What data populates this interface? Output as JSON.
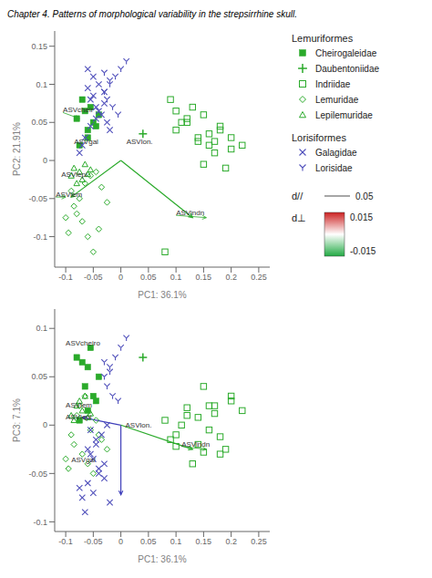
{
  "chart_data": [
    {
      "type": "scatter",
      "title": "Chapter 4. Patterns of morphological variability in the strepsirrhine skull.",
      "x_label": "PC1: 36.1%",
      "y_label": "PC2: 21.91%",
      "xlim": [
        -0.12,
        0.27
      ],
      "ylim": [
        -0.14,
        0.17
      ],
      "xticks": [
        -0.1,
        -0.05,
        0,
        0.05,
        0.1,
        0.15,
        0.2,
        0.25
      ],
      "yticks": [
        -0.1,
        -0.05,
        0,
        0.05,
        0.1,
        0.15
      ],
      "grid": false,
      "series": [
        {
          "name": "Cheirogaleidae",
          "color": "#2aaa2a",
          "marker": "square",
          "x": [
            -0.08,
            -0.06,
            -0.055,
            -0.04,
            -0.07,
            -0.065,
            -0.05,
            -0.045,
            -0.06,
            -0.075
          ],
          "values": [
            0.055,
            0.04,
            0.07,
            0.06,
            0.08,
            0.065,
            0.05,
            0.045,
            0.03,
            0.02
          ]
        },
        {
          "name": "Lemuridae",
          "color": "#2aaa2a",
          "marker": "diamond_open",
          "x": [
            -0.09,
            -0.085,
            -0.07,
            -0.06,
            -0.05,
            -0.04,
            -0.08,
            -0.075,
            -0.065,
            -0.055,
            -0.045,
            -0.035,
            -0.025,
            -0.1,
            -0.095
          ],
          "values": [
            -0.04,
            -0.06,
            -0.08,
            -0.1,
            -0.12,
            -0.09,
            -0.07,
            -0.05,
            -0.03,
            -0.02,
            -0.015,
            -0.035,
            -0.055,
            -0.075,
            -0.095
          ]
        },
        {
          "name": "Lepilemuridae",
          "color": "#2aaa2a",
          "marker": "triangle_open",
          "x": [
            -0.09,
            -0.08,
            -0.07,
            -0.085,
            -0.075,
            -0.065,
            -0.055,
            -0.06
          ],
          "values": [
            -0.02,
            -0.03,
            -0.025,
            -0.01,
            -0.015,
            -0.005,
            -0.012,
            -0.018
          ]
        },
        {
          "name": "Indriidae",
          "color": "#2aaa2a",
          "marker": "square_open",
          "x": [
            0.1,
            0.12,
            0.14,
            0.16,
            0.18,
            0.2,
            0.15,
            0.13,
            0.11,
            0.17,
            0.19,
            0.22,
            0.09,
            0.08,
            0.16,
            0.14,
            0.18,
            0.12,
            0.1,
            0.2,
            0.15,
            0.17
          ],
          "values": [
            0.04,
            0.05,
            0.03,
            0.02,
            0.04,
            0.03,
            0.06,
            0.07,
            0.05,
            0.01,
            -0.01,
            0.02,
            0.08,
            -0.12,
            0.035,
            0.025,
            0.045,
            0.055,
            0.065,
            0.015,
            -0.005,
            0.025
          ]
        },
        {
          "name": "Daubentoniidae",
          "color": "#2aaa2a",
          "marker": "plus",
          "x": [
            0.04
          ],
          "values": [
            0.035
          ]
        },
        {
          "name": "Galagidae",
          "color": "#5050bb",
          "marker": "x",
          "x": [
            -0.06,
            -0.05,
            -0.04,
            -0.03,
            -0.055,
            -0.045,
            -0.035,
            -0.025,
            -0.02,
            -0.065,
            -0.07,
            -0.075,
            -0.03,
            -0.04,
            -0.05,
            -0.06,
            -0.045,
            -0.055
          ],
          "values": [
            0.12,
            0.11,
            0.1,
            0.09,
            0.08,
            0.07,
            0.06,
            0.05,
            0.04,
            0.03,
            0.02,
            0.01,
            0.075,
            0.065,
            0.085,
            0.095,
            0.055,
            0.045
          ]
        },
        {
          "name": "Lorisidae",
          "color": "#5050bb",
          "marker": "Y",
          "x": [
            -0.03,
            -0.02,
            -0.01,
            0.0,
            0.01,
            -0.025,
            -0.015,
            -0.005,
            -0.02,
            -0.03
          ],
          "values": [
            0.09,
            0.1,
            0.11,
            0.12,
            0.13,
            0.08,
            0.07,
            0.06,
            0.105,
            0.115
          ]
        }
      ],
      "arrows": [
        {
          "from": [
            0.0,
            0.0
          ],
          "to": [
            -0.09,
            -0.048
          ],
          "color": "#2aaa2a"
        },
        {
          "from": [
            0.0,
            0.0
          ],
          "to": [
            0.13,
            -0.075
          ],
          "color": "#2aaa2a"
        }
      ],
      "annotations": [
        {
          "text": "ASVcheir",
          "x": -0.105,
          "y": 0.063,
          "arrow_to": [
            -0.075,
            0.055
          ],
          "color": "#2aaa2a"
        },
        {
          "text": "ASVgal",
          "x": -0.085,
          "y": 0.022
        },
        {
          "text": "ASVlon.",
          "x": 0.01,
          "y": 0.022
        },
        {
          "text": "ASVlepi",
          "x": -0.108,
          "y": -0.022
        },
        {
          "text": "ASVlem",
          "x": -0.118,
          "y": -0.048,
          "arrow_to": [
            -0.1,
            -0.048
          ],
          "color": "#2aaa2a"
        },
        {
          "text": "ASVindn",
          "x": 0.1,
          "y": -0.072,
          "arrow_to": [
            0.155,
            -0.075
          ],
          "color": "#2aaa2a"
        }
      ],
      "legend_groups": [
        {
          "name": "Lemuriformes",
          "series": [
            "Cheirogaleidae",
            "Daubentoniidae",
            "Indriidae",
            "Lemuridae",
            "Lepilemuridae"
          ]
        },
        {
          "name": "Lorisiformes",
          "series": [
            "Galagidae",
            "Lorisidae"
          ]
        }
      ],
      "scale_bar": {
        "label": "d//",
        "value": 0.05
      },
      "color_bar": {
        "label": "d⊥",
        "range": [
          -0.015,
          0.015
        ],
        "ticks": [
          -0.015,
          0.015
        ],
        "colors": [
          "#22aa44",
          "#ffffff",
          "#cc2222"
        ]
      }
    },
    {
      "type": "scatter",
      "x_label": "PC1: 36.1%",
      "y_label": "PC3: 7.1%",
      "xlim": [
        -0.12,
        0.27
      ],
      "ylim": [
        -0.11,
        0.12
      ],
      "xticks": [
        -0.1,
        -0.05,
        0,
        0.05,
        0.1,
        0.15,
        0.2,
        0.25
      ],
      "yticks": [
        -0.1,
        -0.05,
        0,
        0.05,
        0.1
      ],
      "grid": false,
      "series": [
        {
          "name": "Cheirogaleidae",
          "color": "#2aaa2a",
          "marker": "square",
          "x": [
            -0.08,
            -0.06,
            -0.055,
            -0.04,
            -0.07,
            -0.065,
            -0.05,
            -0.045,
            -0.06,
            -0.075
          ],
          "values": [
            0.07,
            0.06,
            0.08,
            0.05,
            0.065,
            0.04,
            0.03,
            0.025,
            0.015,
            0.005
          ]
        },
        {
          "name": "Lemuridae",
          "color": "#2aaa2a",
          "marker": "diamond_open",
          "x": [
            -0.09,
            -0.085,
            -0.07,
            -0.06,
            -0.05,
            -0.04,
            -0.08,
            -0.075,
            -0.065,
            -0.055,
            -0.045,
            -0.035,
            -0.025,
            -0.1,
            -0.095
          ],
          "values": [
            -0.01,
            -0.02,
            -0.03,
            -0.04,
            -0.05,
            -0.01,
            0.01,
            0.02,
            0.03,
            -0.005,
            0.005,
            -0.015,
            -0.025,
            -0.035,
            -0.045
          ]
        },
        {
          "name": "Lepilemuridae",
          "color": "#2aaa2a",
          "marker": "triangle_open",
          "x": [
            -0.09,
            -0.08,
            -0.07,
            -0.085,
            -0.075,
            -0.065,
            -0.055,
            -0.06
          ],
          "values": [
            0.01,
            0.02,
            0.015,
            0.005,
            0.025,
            0.03,
            0.012,
            0.008
          ]
        },
        {
          "name": "Indriidae",
          "color": "#2aaa2a",
          "marker": "square_open",
          "x": [
            0.1,
            0.12,
            0.14,
            0.16,
            0.18,
            0.2,
            0.15,
            0.13,
            0.11,
            0.17,
            0.19,
            0.22,
            0.09,
            0.08,
            0.16,
            0.14,
            0.18,
            0.12,
            0.1,
            0.2,
            0.15,
            0.17
          ],
          "values": [
            -0.01,
            0.01,
            -0.02,
            0.02,
            -0.03,
            0.03,
            0.04,
            -0.04,
            0.0,
            0.02,
            -0.025,
            0.015,
            -0.015,
            0.005,
            -0.005,
            0.008,
            -0.012,
            0.018,
            -0.022,
            0.025,
            -0.028,
            0.012
          ]
        },
        {
          "name": "Daubentoniidae",
          "color": "#2aaa2a",
          "marker": "plus",
          "x": [
            0.04
          ],
          "values": [
            0.07
          ]
        },
        {
          "name": "Galagidae",
          "color": "#5050bb",
          "marker": "x",
          "x": [
            -0.06,
            -0.05,
            -0.04,
            -0.03,
            -0.055,
            -0.045,
            -0.035,
            -0.025,
            -0.02,
            -0.065,
            -0.07,
            -0.075,
            -0.03,
            -0.04,
            -0.05,
            -0.06,
            -0.045,
            -0.055
          ],
          "values": [
            -0.06,
            -0.07,
            -0.05,
            -0.04,
            -0.03,
            -0.02,
            -0.01,
            0.0,
            -0.08,
            -0.09,
            -0.075,
            -0.065,
            -0.055,
            -0.045,
            -0.035,
            -0.025,
            -0.015,
            -0.005
          ]
        },
        {
          "name": "Lorisidae",
          "color": "#5050bb",
          "marker": "Y",
          "x": [
            -0.03,
            -0.02,
            -0.01,
            0.0,
            0.01,
            -0.025,
            -0.015,
            -0.005,
            -0.02,
            -0.03
          ],
          "values": [
            0.05,
            0.06,
            0.07,
            0.08,
            0.09,
            0.04,
            0.03,
            0.025,
            0.055,
            0.065
          ]
        }
      ],
      "arrows": [
        {
          "from": [
            0.0,
            0.0
          ],
          "to": [
            -0.07,
            0.008
          ],
          "color": "#4040bb"
        },
        {
          "from": [
            0.0,
            0.0
          ],
          "to": [
            0.0,
            -0.072
          ],
          "color": "#4040bb"
        },
        {
          "from": [
            0.0,
            0.0
          ],
          "to": [
            0.13,
            -0.025
          ],
          "color": "#2aaa2a"
        }
      ],
      "annotations": [
        {
          "text": "ASVcheiro",
          "x": -0.1,
          "y": 0.082
        },
        {
          "text": "ASVlem",
          "x": -0.1,
          "y": 0.018
        },
        {
          "text": "ASVlepi",
          "x": -0.1,
          "y": 0.006
        },
        {
          "text": "ASVlon.",
          "x": 0.008,
          "y": -0.003
        },
        {
          "text": "ASVgal",
          "x": -0.09,
          "y": -0.038
        },
        {
          "text": "ASVindn",
          "x": 0.11,
          "y": -0.022,
          "arrow_to": [
            0.155,
            -0.025
          ],
          "color": "#2aaa2a"
        }
      ]
    }
  ]
}
